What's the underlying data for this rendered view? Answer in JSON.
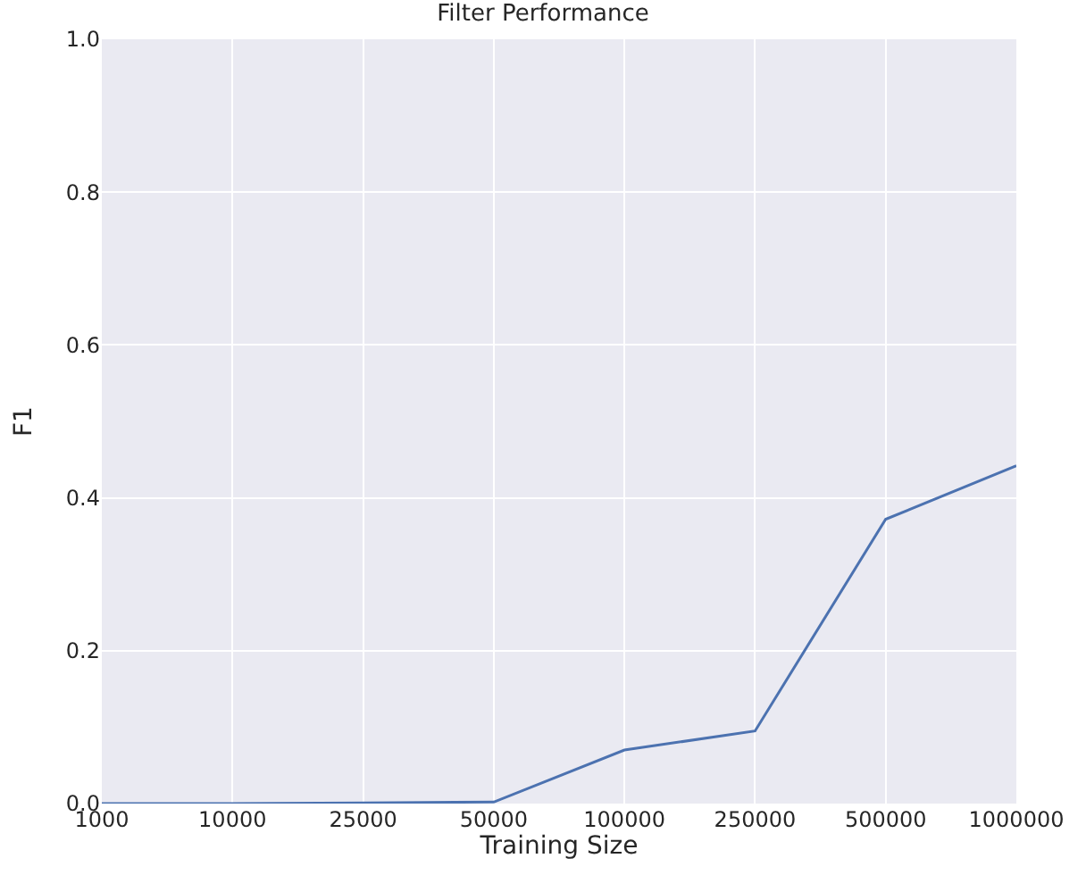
{
  "chart_data": {
    "type": "line",
    "title": "Filter Performance",
    "xlabel": "Training Size",
    "ylabel": "F1",
    "categories": [
      "1000",
      "10000",
      "25000",
      "50000",
      "100000",
      "250000",
      "500000",
      "1000000"
    ],
    "series": [
      {
        "color": "#4c72b0",
        "values": [
          0.0,
          0.0,
          0.001,
          0.002,
          0.07,
          0.095,
          0.372,
          0.442
        ]
      }
    ],
    "ylim": [
      0,
      1
    ],
    "yticks": [
      {
        "value": 0,
        "label": "0.0"
      },
      0.2,
      0.4,
      0.6,
      0.8,
      {
        "value": 1,
        "label": "1.0"
      }
    ],
    "grid": true,
    "marker": "none",
    "line_style": "solid"
  }
}
